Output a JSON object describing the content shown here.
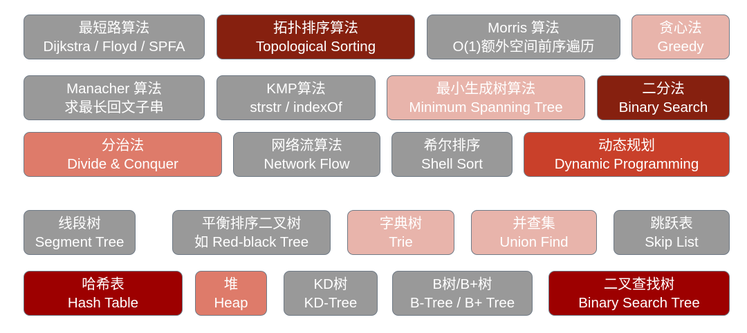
{
  "colors": {
    "gray": "#999999",
    "dark_red": "#86200f",
    "pink": "#e8b4ab",
    "salmon": "#de7b6a",
    "red": "#c9402a",
    "crimson": "#9d0000"
  },
  "tiles": [
    {
      "line1": "最短路算法",
      "line2": "Dijkstra / Floyd / SPFA",
      "color": "gray"
    },
    {
      "line1": "拓扑排序算法",
      "line2": "Topological Sorting",
      "color": "dark_red"
    },
    {
      "line1": "Morris 算法",
      "line2": "O(1)额外空间前序遍历",
      "color": "gray"
    },
    {
      "line1": "贪心法",
      "line2": "Greedy",
      "color": "pink"
    },
    {
      "line1": "Manacher 算法",
      "line2": "求最长回文子串",
      "color": "gray"
    },
    {
      "line1": "KMP算法",
      "line2": "strstr / indexOf",
      "color": "gray"
    },
    {
      "line1": "最小生成树算法",
      "line2": "Minimum Spanning Tree",
      "color": "pink"
    },
    {
      "line1": "二分法",
      "line2": "Binary Search",
      "color": "dark_red"
    },
    {
      "line1": "分治法",
      "line2": "Divide & Conquer",
      "color": "salmon"
    },
    {
      "line1": "网络流算法",
      "line2": "Network Flow",
      "color": "gray"
    },
    {
      "line1": "希尔排序",
      "line2": "Shell Sort",
      "color": "gray"
    },
    {
      "line1": "动态规划",
      "line2": "Dynamic Programming",
      "color": "red"
    },
    {
      "line1": "线段树",
      "line2": "Segment Tree",
      "color": "gray"
    },
    {
      "line1": "平衡排序二叉树",
      "line2": "如 Red-black Tree",
      "color": "gray"
    },
    {
      "line1": "字典树",
      "line2": "Trie",
      "color": "pink"
    },
    {
      "line1": "并查集",
      "line2": "Union Find",
      "color": "pink"
    },
    {
      "line1": "跳跃表",
      "line2": "Skip List",
      "color": "gray"
    },
    {
      "line1": "哈希表",
      "line2": "Hash Table",
      "color": "crimson"
    },
    {
      "line1": "堆",
      "line2": "Heap",
      "color": "salmon"
    },
    {
      "line1": "KD树",
      "line2": "KD-Tree",
      "color": "gray"
    },
    {
      "line1": "B树/B+树",
      "line2": "B-Tree / B+ Tree",
      "color": "gray"
    },
    {
      "line1": "二叉查找树",
      "line2": "Binary Search Tree",
      "color": "crimson"
    }
  ]
}
